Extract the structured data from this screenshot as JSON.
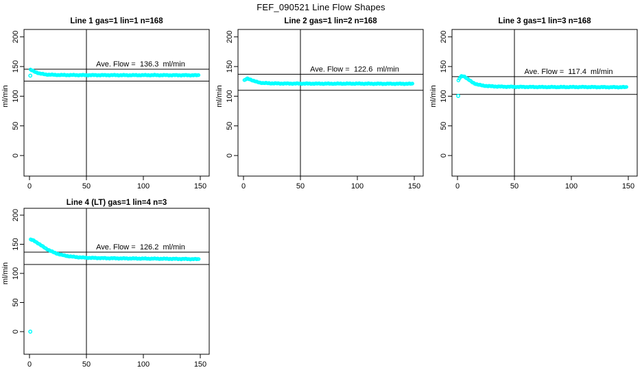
{
  "window": {
    "title": "FEF_090521  Line Flow Shapes"
  },
  "colors": {
    "series": "#00ffff",
    "axis": "#000000",
    "background": "#ffffff"
  },
  "chart_data": [
    {
      "type": "scatter",
      "title": "Line 1 gas=1 lin=1 n=168",
      "annotation": "Ave. Flow =  136.3  ml/min",
      "ave_flow_ml_min": 136.3,
      "n": 168,
      "ylabel": "ml/min",
      "x_ticks": [
        0,
        50,
        100,
        150
      ],
      "y_ticks": [
        0,
        50,
        100,
        150,
        200
      ],
      "vline_x": 50,
      "hlines": [
        145.5,
        125.5
      ],
      "series_anchors": [
        [
          0.9,
          144.5
        ],
        [
          2,
          143.6
        ],
        [
          3,
          142.6
        ],
        [
          5,
          141.0
        ],
        [
          7,
          139.5
        ],
        [
          9,
          138.3
        ],
        [
          11,
          137.5
        ],
        [
          14,
          136.8
        ],
        [
          17,
          136.3
        ],
        [
          20,
          136.1
        ],
        [
          25,
          135.8
        ],
        [
          30,
          135.7
        ],
        [
          40,
          135.6
        ],
        [
          55,
          135.5
        ],
        [
          70,
          135.5
        ],
        [
          90,
          135.4
        ],
        [
          110,
          135.5
        ],
        [
          130,
          135.4
        ],
        [
          149,
          135.3
        ]
      ],
      "extra_points": [
        [
          0.7,
          134.6
        ]
      ]
    },
    {
      "type": "scatter",
      "title": "Line 2 gas=1 lin=2 n=168",
      "annotation": "Ave. Flow =  122.6  ml/min",
      "ave_flow_ml_min": 122.6,
      "n": 168,
      "ylabel": "ml/min",
      "x_ticks": [
        0,
        50,
        100,
        150
      ],
      "y_ticks": [
        0,
        50,
        100,
        150,
        200
      ],
      "vline_x": 50,
      "hlines": [
        137.0,
        110.0
      ],
      "series_anchors": [
        [
          0.8,
          126.5
        ],
        [
          2,
          128.5
        ],
        [
          3.5,
          129.5
        ],
        [
          5,
          129.0
        ],
        [
          7,
          127.5
        ],
        [
          9,
          125.8
        ],
        [
          11,
          124.4
        ],
        [
          14,
          123.0
        ],
        [
          17,
          122.3
        ],
        [
          21,
          121.9
        ],
        [
          26,
          121.6
        ],
        [
          32,
          121.4
        ],
        [
          45,
          121.3
        ],
        [
          60,
          121.2
        ],
        [
          80,
          121.1
        ],
        [
          100,
          121.2
        ],
        [
          120,
          121.0
        ],
        [
          135,
          121.0
        ],
        [
          149,
          120.9
        ]
      ],
      "extra_points": []
    },
    {
      "type": "scatter",
      "title": "Line 3 gas=1 lin=3 n=168",
      "annotation": "Ave. Flow =  117.4  ml/min",
      "ave_flow_ml_min": 117.4,
      "n": 168,
      "ylabel": "ml/min",
      "x_ticks": [
        0,
        50,
        100,
        150
      ],
      "y_ticks": [
        0,
        50,
        100,
        150,
        200
      ],
      "vline_x": 50,
      "hlines": [
        133.0,
        103.0
      ],
      "series_anchors": [
        [
          0.8,
          126.0
        ],
        [
          2,
          131.0
        ],
        [
          3.5,
          133.5
        ],
        [
          5,
          134.0
        ],
        [
          6.5,
          132.8
        ],
        [
          8,
          130.5
        ],
        [
          10,
          127.5
        ],
        [
          12,
          124.5
        ],
        [
          15,
          121.5
        ],
        [
          18,
          119.5
        ],
        [
          22,
          118.0
        ],
        [
          27,
          117.0
        ],
        [
          33,
          116.4
        ],
        [
          42,
          116.0
        ],
        [
          55,
          115.7
        ],
        [
          70,
          115.5
        ],
        [
          90,
          115.4
        ],
        [
          110,
          115.5
        ],
        [
          130,
          115.3
        ],
        [
          149,
          115.2
        ]
      ],
      "extra_points": [
        [
          0.6,
          100.5
        ]
      ]
    },
    {
      "type": "scatter",
      "title": "Line 4 (LT) gas=1 lin=4 n=3",
      "annotation": "Ave. Flow =  126.2  ml/min",
      "ave_flow_ml_min": 126.2,
      "n": 3,
      "ylabel": "ml/min",
      "x_ticks": [
        0,
        50,
        100,
        150
      ],
      "y_ticks": [
        0,
        50,
        100,
        150,
        200
      ],
      "vline_x": 50,
      "hlines": [
        136.4,
        115.3
      ],
      "series_anchors": [
        [
          1,
          158.0
        ],
        [
          3,
          157.0
        ],
        [
          5,
          155.0
        ],
        [
          7,
          152.5
        ],
        [
          9,
          149.7
        ],
        [
          11,
          147.0
        ],
        [
          13,
          144.5
        ],
        [
          15,
          142.1
        ],
        [
          17,
          140.0
        ],
        [
          19,
          138.0
        ],
        [
          21,
          136.3
        ],
        [
          24,
          134.1
        ],
        [
          27,
          132.3
        ],
        [
          30,
          131.0
        ],
        [
          34,
          129.6
        ],
        [
          38,
          128.6
        ],
        [
          43,
          127.7
        ],
        [
          48,
          127.1
        ],
        [
          55,
          126.6
        ],
        [
          62,
          126.3
        ],
        [
          70,
          126.0
        ],
        [
          80,
          125.8
        ],
        [
          90,
          125.6
        ],
        [
          100,
          125.4
        ],
        [
          110,
          125.3
        ],
        [
          120,
          125.1
        ],
        [
          130,
          124.9
        ],
        [
          140,
          124.7
        ],
        [
          149,
          124.4
        ]
      ],
      "extra_points": [
        [
          0.7,
          0
        ]
      ]
    }
  ]
}
